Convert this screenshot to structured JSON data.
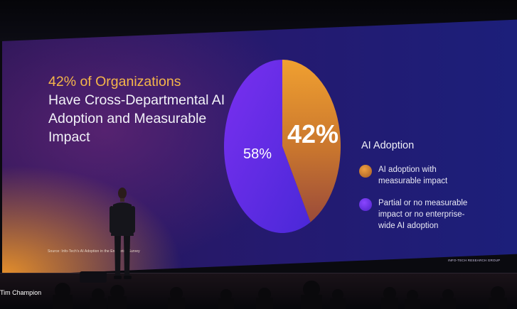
{
  "slide": {
    "headline_accent": "42% of Organizations",
    "headline_rest": "Have Cross-Departmental AI Adoption and Measurable Impact",
    "source": "Source: Info-Tech's AI Adoption in the Enterprise Survey",
    "brand": "INFO-TECH RESEARCH GROUP"
  },
  "chart_data": {
    "type": "pie",
    "title": "AI Adoption",
    "slices": [
      {
        "label": "AI adoption with measurable impact",
        "value": 42,
        "display": "42%",
        "color": "#e0912c"
      },
      {
        "label": "Partial or no measurable impact or no enterprise-wide AI adoption",
        "value": 58,
        "display": "58%",
        "color": "#6a2ff0"
      }
    ]
  },
  "caption": {
    "name": "Tim Champion"
  }
}
